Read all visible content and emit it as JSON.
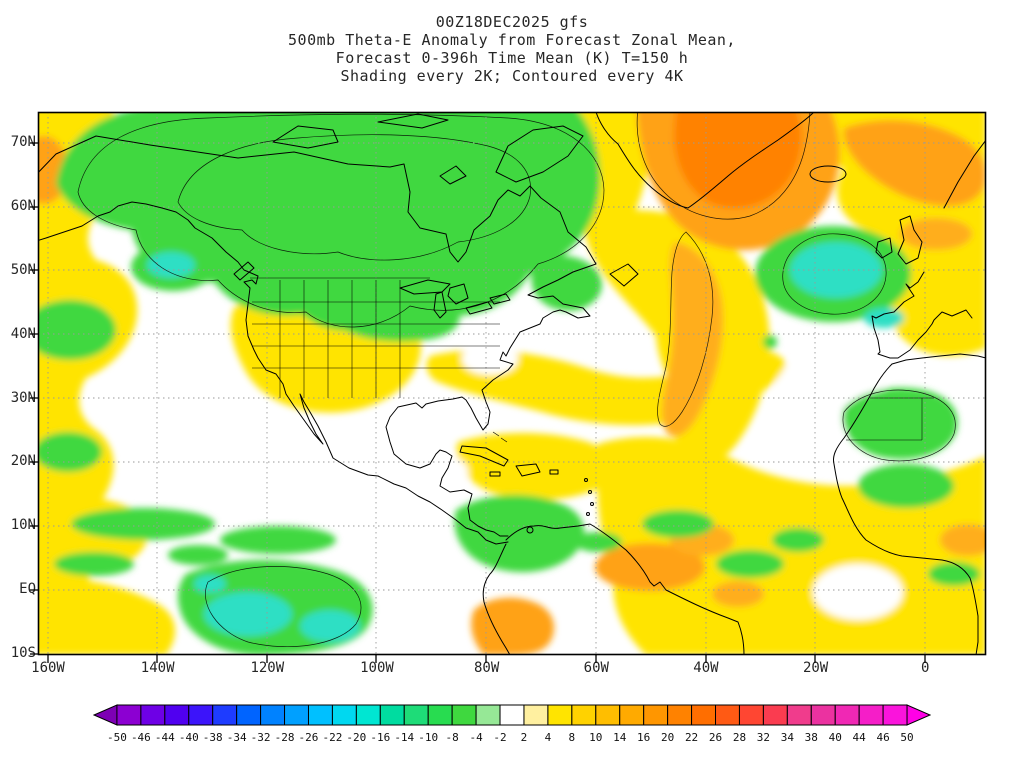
{
  "title": {
    "line1": "00Z18DEC2025 gfs",
    "line2": "500mb Theta-E Anomaly from Forecast Zonal Mean,",
    "line3": "Forecast 0-396h Time Mean (K) T=150 h",
    "line4": "Shading every 2K; Contoured every 4K"
  },
  "axes": {
    "lat_labels": [
      "70N",
      "60N",
      "50N",
      "40N",
      "30N",
      "20N",
      "10N",
      "EQ",
      "10S"
    ],
    "lon_labels": [
      "160W",
      "140W",
      "120W",
      "100W",
      "80W",
      "60W",
      "40W",
      "20W",
      "0"
    ]
  },
  "colorbar": {
    "tick_labels": [
      "-50",
      "-46",
      "-44",
      "-40",
      "-38",
      "-34",
      "-32",
      "-28",
      "-26",
      "-22",
      "-20",
      "-16",
      "-14",
      "-10",
      "-8",
      "-4",
      "-2",
      "2",
      "4",
      "8",
      "10",
      "14",
      "16",
      "20",
      "22",
      "26",
      "28",
      "32",
      "34",
      "38",
      "40",
      "44",
      "46",
      "50"
    ],
    "segment_colors": [
      "#7d00b4",
      "#8c00d2",
      "#6e00e6",
      "#5000f0",
      "#3c14fa",
      "#1e3cff",
      "#0064ff",
      "#0082ff",
      "#00a0ff",
      "#00c0ff",
      "#00d8f0",
      "#00e6d2",
      "#00dca0",
      "#1edc78",
      "#28dc50",
      "#3fd83f",
      "#96e896",
      "#ffffff",
      "#fff0a0",
      "#ffe400",
      "#ffd200",
      "#ffbe00",
      "#ffaa00",
      "#ff9600",
      "#ff8200",
      "#ff6e00",
      "#ff5a14",
      "#ff4632",
      "#fa3c50",
      "#f03c8c",
      "#eb32a0",
      "#f028b4",
      "#f51ec8",
      "#fa14dc",
      "#ff00e6"
    ]
  },
  "colors": {
    "shade_green": "#3fd83f",
    "shade_yellow": "#ffe400",
    "shade_orange": "#ffa216",
    "shade_deep_orange": "#ff8200",
    "shade_cyan": "#2fdfc4",
    "near_zero_white": "#ffffff",
    "coastline": "#000000",
    "grid": "#9a9a9a"
  },
  "chart_data": {
    "type": "heatmap",
    "title": "500mb Theta-E Anomaly from Forecast Zonal Mean, Forecast 0-396h Time Mean (K) T=150 h",
    "model": "gfs",
    "init_time": "00Z18DEC2025",
    "forecast_hour": "T=150 h",
    "units": "K",
    "shading_interval_K": 2,
    "contour_interval_K": 4,
    "lon_range_deg": [
      -160,
      10
    ],
    "lat_range_deg": [
      -10,
      75
    ],
    "lon_ticks": [
      "160W",
      "140W",
      "120W",
      "100W",
      "80W",
      "60W",
      "40W",
      "20W",
      "0"
    ],
    "lat_ticks": [
      "70N",
      "60N",
      "50N",
      "40N",
      "30N",
      "20N",
      "10N",
      "EQ",
      "10S"
    ],
    "colorbar_levels": [
      -50,
      -46,
      -44,
      -40,
      -38,
      -34,
      -32,
      -28,
      -26,
      -22,
      -20,
      -16,
      -14,
      -10,
      -8,
      -4,
      -2,
      2,
      4,
      8,
      10,
      14,
      16,
      20,
      22,
      26,
      28,
      32,
      34,
      38,
      40,
      44,
      46,
      50
    ],
    "anomaly_features": [
      {
        "region": "Canada, Alaska, Hudson Bay, Quebec/Labrador",
        "anomaly_K": "-4 to -10",
        "shade": "green"
      },
      {
        "region": "Greenland and subpolar North Atlantic",
        "anomaly_K": "+12 to +24",
        "shade": "orange (strong positive)"
      },
      {
        "region": "NE Atlantic toward Iceland/Scandinavia, top-right",
        "anomaly_K": "+4 to +14",
        "shade": "yellow-orange"
      },
      {
        "region": "Mid-Atlantic tongue SW of Greenland toward 40N",
        "anomaly_K": "+6 to +12",
        "shade": "orange over yellow"
      },
      {
        "region": "Western US / Rockies and NE Pacific left edge",
        "anomaly_K": "+2 to +6",
        "shade": "yellow"
      },
      {
        "region": "Atlantic west of Iberia (45-50N)",
        "anomaly_K": "-8 to -14",
        "shade": "green with cyan core"
      },
      {
        "region": "West Africa / Sahara",
        "anomaly_K": "-4 to -8",
        "shade": "green"
      },
      {
        "region": "Tropical East Pacific near/below equator",
        "anomaly_K": "-6 to -12",
        "shade": "green/cyan"
      },
      {
        "region": "Subtropical Gulf-to-Atlantic band and tropical Atlantic",
        "anomaly_K": "+2 to +10",
        "shade": "yellow with orange patches"
      },
      {
        "region": "Eastern Pacific 0-40N, SE US pocket, central Atlantic pockets",
        "anomaly_K": "-2 to +2",
        "shade": "white (near zero)"
      }
    ]
  }
}
